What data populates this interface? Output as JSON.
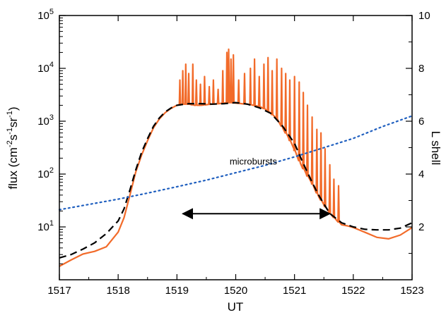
{
  "chart_data": {
    "type": "line",
    "title": "",
    "xlabel": "UT",
    "ylabel": "flux (cm⁻²s⁻¹sr⁻¹)",
    "ylabel_right": "L shell",
    "xlim": [
      1517,
      1523
    ],
    "ylim": [
      1,
      100000
    ],
    "yscale": "log",
    "ylim_right": [
      0,
      10
    ],
    "xticks": [
      1517,
      1518,
      1519,
      1520,
      1521,
      1522,
      1523
    ],
    "yticks": [
      {
        "value": 10,
        "base": "10",
        "exp": "1"
      },
      {
        "value": 100,
        "base": "10",
        "exp": "2"
      },
      {
        "value": 1000,
        "base": "10",
        "exp": "3"
      },
      {
        "value": 10000,
        "base": "10",
        "exp": "4"
      },
      {
        "value": 100000,
        "base": "10",
        "exp": "5"
      }
    ],
    "yticks_right": [
      2,
      4,
      6,
      8,
      10
    ],
    "grid": false,
    "series": [
      {
        "style": "solid",
        "color": "#f26b2a",
        "x": [
          1517.0,
          1517.2,
          1517.4,
          1517.6,
          1517.8,
          1518.0,
          1518.1,
          1518.2,
          1518.3,
          1518.4,
          1518.5,
          1518.6,
          1518.7,
          1518.8,
          1518.9,
          1519.0,
          1519.1,
          1519.2,
          1519.3,
          1519.4,
          1519.5,
          1519.6,
          1519.7,
          1519.8,
          1519.9,
          1520.0,
          1520.1,
          1520.2,
          1520.3,
          1520.4,
          1520.5,
          1520.6,
          1520.7,
          1520.8,
          1520.9,
          1521.0,
          1521.1,
          1521.2,
          1521.3,
          1521.4,
          1521.5,
          1521.6,
          1521.7,
          1521.8,
          1521.9,
          1522.0,
          1522.2,
          1522.4,
          1522.6,
          1522.8,
          1523.0
        ],
        "y": [
          1.8,
          2.1,
          2.7,
          3.4,
          4.8,
          8,
          15,
          40,
          110,
          230,
          430,
          750,
          1100,
          1450,
          1750,
          2000,
          2100,
          2100,
          2000,
          2000,
          2050,
          2100,
          2150,
          2200,
          2250,
          2200,
          2150,
          2100,
          2000,
          1900,
          1700,
          1400,
          1100,
          750,
          480,
          280,
          160,
          100,
          65,
          40,
          26,
          18,
          14,
          11,
          9.5,
          8.5,
          7.5,
          7,
          7,
          7.5,
          9
        ]
      },
      {
        "style": "dashed",
        "color": "#000000",
        "x": [
          1517.0,
          1517.2,
          1517.4,
          1517.6,
          1517.8,
          1518.0,
          1518.1,
          1518.2,
          1518.3,
          1518.4,
          1518.5,
          1518.6,
          1518.7,
          1518.8,
          1518.9,
          1519.0,
          1519.2,
          1519.4,
          1519.6,
          1519.8,
          1520.0,
          1520.2,
          1520.4,
          1520.6,
          1520.8,
          1521.0,
          1521.1,
          1521.2,
          1521.3,
          1521.4,
          1521.5,
          1521.6,
          1521.8,
          1522.0,
          1522.2,
          1522.4,
          1522.6,
          1522.8,
          1523.0
        ],
        "y": [
          2.6,
          3.0,
          3.8,
          5.0,
          7.5,
          13,
          22,
          50,
          120,
          260,
          470,
          800,
          1150,
          1500,
          1780,
          2000,
          2150,
          2150,
          2100,
          2150,
          2250,
          2100,
          1800,
          1400,
          800,
          380,
          210,
          120,
          70,
          42,
          27,
          18,
          12,
          10,
          9,
          8.8,
          8.8,
          9.5,
          12
        ]
      },
      {
        "style": "dotted",
        "color": "#1f5fbf",
        "axis": "right",
        "x": [
          1517.0,
          1517.5,
          1518.0,
          1518.5,
          1519.0,
          1519.5,
          1520.0,
          1520.5,
          1521.0,
          1521.5,
          1522.0,
          1522.5,
          1523.0
        ],
        "y": [
          2.65,
          2.85,
          3.05,
          3.28,
          3.52,
          3.77,
          4.05,
          4.33,
          4.65,
          5.0,
          5.35,
          5.8,
          6.2
        ]
      }
    ],
    "spikes": {
      "x": [
        1519.05,
        1519.1,
        1519.15,
        1519.2,
        1519.27,
        1519.33,
        1519.4,
        1519.47,
        1519.55,
        1519.62,
        1519.7,
        1519.78,
        1519.85,
        1519.88,
        1519.92,
        1519.96,
        1520.05,
        1520.15,
        1520.25,
        1520.32,
        1520.4,
        1520.48,
        1520.55,
        1520.62,
        1520.7,
        1520.78,
        1520.85,
        1520.92,
        1521.0,
        1521.08,
        1521.15,
        1521.22,
        1521.3,
        1521.38,
        1521.45,
        1521.52,
        1521.6,
        1521.67,
        1521.75
      ],
      "y": [
        6000,
        9000,
        12000,
        8000,
        12000,
        6000,
        5000,
        7000,
        4500,
        6000,
        4000,
        9000,
        20000,
        23000,
        15000,
        18000,
        6000,
        8000,
        10000,
        15000,
        7000,
        12000,
        16000,
        9000,
        15000,
        10000,
        8000,
        6000,
        7000,
        5500,
        3500,
        2000,
        1200,
        700,
        600,
        300,
        150,
        80,
        60
      ]
    },
    "annotations": [
      {
        "text": "microbursts",
        "x": 1520.3,
        "y": 4.5,
        "arrow": {
          "from": 1519.1,
          "to": 1521.6,
          "y": 2.5
        }
      }
    ]
  }
}
